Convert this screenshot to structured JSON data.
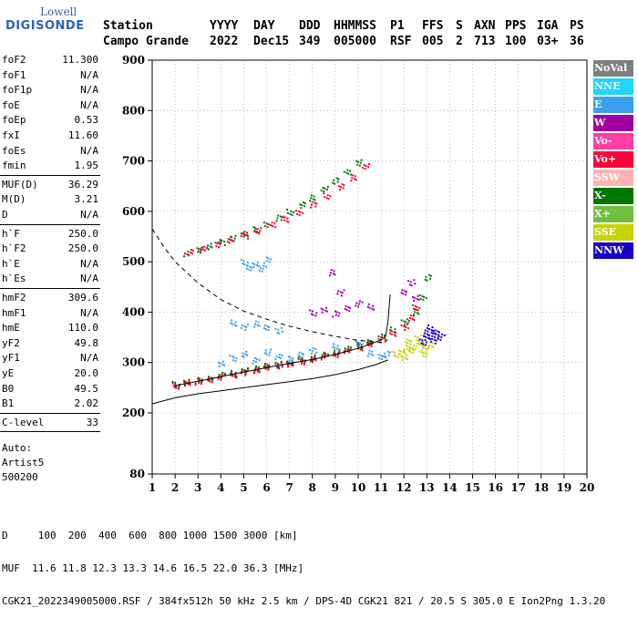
{
  "logo": {
    "line1": "Lowell",
    "line2": "DIGISONDE"
  },
  "header": {
    "row1": [
      "Station",
      "YYYY",
      "DAY",
      "DDD",
      "HHMMSS",
      "P1",
      "FFS",
      "S",
      "AXN",
      "PPS",
      "IGA",
      "PS"
    ],
    "row2": [
      "Campo Grande",
      "2022",
      "Dec15",
      "349",
      "005000",
      "RSF",
      "005",
      "2",
      "713",
      "100",
      "03+",
      "36"
    ]
  },
  "params": {
    "group1": [
      [
        "foF2",
        "11.300"
      ],
      [
        "foF1",
        "N/A"
      ],
      [
        "foF1p",
        "N/A"
      ],
      [
        "foE",
        "N/A"
      ],
      [
        "foEp",
        "0.53"
      ],
      [
        "fxI",
        "11.60"
      ],
      [
        "foEs",
        "N/A"
      ],
      [
        "fmin",
        "1.95"
      ]
    ],
    "group2": [
      [
        "MUF(D)",
        "36.29"
      ],
      [
        "M(D)",
        "3.21"
      ],
      [
        "D",
        "N/A"
      ]
    ],
    "group3": [
      [
        "h`F",
        "250.0"
      ],
      [
        "h`F2",
        "250.0"
      ],
      [
        "h`E",
        "N/A"
      ],
      [
        "h`Es",
        "N/A"
      ]
    ],
    "group4": [
      [
        "hmF2",
        "309.6"
      ],
      [
        "hmF1",
        "N/A"
      ],
      [
        "hmE",
        "110.0"
      ],
      [
        "yF2",
        "49.8"
      ],
      [
        "yF1",
        "N/A"
      ],
      [
        "yE",
        "20.0"
      ],
      [
        "B0",
        "49.5"
      ],
      [
        "B1",
        "2.02"
      ]
    ],
    "group5": [
      [
        "C-level",
        "33"
      ]
    ],
    "auto": [
      "Auto:",
      "Artist5",
      "500200"
    ]
  },
  "legend": [
    {
      "label": "NoVal",
      "color": "#7f7f7f"
    },
    {
      "label": "NNE",
      "color": "#1fd4ff"
    },
    {
      "label": "E",
      "color": "#3aa0f0"
    },
    {
      "label": "W",
      "color": "#a0009f"
    },
    {
      "label": "Vo-",
      "color": "#ff3fa4"
    },
    {
      "label": "Vo+",
      "color": "#ff0038"
    },
    {
      "label": "SSW",
      "color": "#ffb4b4"
    },
    {
      "label": "X-",
      "color": "#007800"
    },
    {
      "label": "X+",
      "color": "#70c040"
    },
    {
      "label": "SSE",
      "color": "#c8d200"
    },
    {
      "label": "NNW",
      "color": "#1400c8"
    }
  ],
  "bottom": {
    "line1": "D     100  200  400  600  800 1000 1500 3000 [km]",
    "line2": "MUF  11.6 11.8 12.3 13.3 14.6 16.5 22.0 36.3 [MHz]",
    "line3": "CGK21_2022349005000.RSF / 384fx512h 50 kHz 2.5 km / DPS-4D CGK21 821 / 20.5 S 305.0 E Ion2Png 1.3.20"
  },
  "chart_data": {
    "type": "scatter",
    "xlim": [
      1,
      20
    ],
    "ylim": [
      80,
      900
    ],
    "x_ticks": [
      1,
      2,
      3,
      4,
      5,
      6,
      7,
      8,
      9,
      10,
      11,
      12,
      13,
      14,
      15,
      16,
      17,
      18,
      19,
      20
    ],
    "y_ticks": [
      80,
      200,
      300,
      400,
      500,
      600,
      700,
      800,
      900
    ],
    "grid": "dotted",
    "series": [
      {
        "name": "X-",
        "points": [
          [
            2.0,
            258
          ],
          [
            2.5,
            262
          ],
          [
            3,
            266
          ],
          [
            3.5,
            270
          ],
          [
            4,
            276
          ],
          [
            4.5,
            280
          ],
          [
            5,
            285
          ],
          [
            5.5,
            289
          ],
          [
            6,
            294
          ],
          [
            6.5,
            298
          ],
          [
            7,
            302
          ],
          [
            7.5,
            306
          ],
          [
            8,
            311
          ],
          [
            8.5,
            316
          ],
          [
            9,
            322
          ],
          [
            9.5,
            328
          ],
          [
            10,
            335
          ],
          [
            10.5,
            343
          ],
          [
            11,
            352
          ],
          [
            11.5,
            366
          ],
          [
            12,
            382
          ],
          [
            12.5,
            402
          ],
          [
            12.8,
            430
          ],
          [
            13,
            470
          ],
          [
            2.5,
            518
          ],
          [
            3,
            525
          ],
          [
            3.5,
            532
          ],
          [
            4,
            540
          ],
          [
            4.5,
            548
          ],
          [
            5,
            556
          ],
          [
            5.5,
            565
          ],
          [
            6,
            576
          ],
          [
            6.5,
            588
          ],
          [
            7,
            600
          ],
          [
            7.5,
            614
          ],
          [
            8,
            628
          ],
          [
            8.5,
            645
          ],
          [
            9,
            662
          ],
          [
            9.5,
            680
          ],
          [
            10,
            698
          ]
        ]
      },
      {
        "name": "Vo+",
        "points": [
          [
            2.0,
            255
          ],
          [
            2.5,
            259
          ],
          [
            3,
            263
          ],
          [
            3.5,
            268
          ],
          [
            4,
            273
          ],
          [
            4.5,
            277
          ],
          [
            5,
            282
          ],
          [
            5.5,
            286
          ],
          [
            6,
            291
          ],
          [
            6.5,
            295
          ],
          [
            7,
            299
          ],
          [
            7.5,
            303
          ],
          [
            8,
            308
          ],
          [
            8.5,
            313
          ],
          [
            9,
            318
          ],
          [
            9.5,
            324
          ],
          [
            10,
            331
          ],
          [
            10.5,
            339
          ],
          [
            11,
            347
          ],
          [
            11.5,
            360
          ],
          [
            12,
            372
          ],
          [
            12.3,
            390
          ],
          [
            12.5,
            410
          ],
          [
            2.6,
            520
          ],
          [
            3.2,
            528
          ],
          [
            3.8,
            536
          ],
          [
            4.4,
            545
          ],
          [
            5,
            553
          ],
          [
            5.6,
            563
          ],
          [
            6.2,
            574
          ],
          [
            6.8,
            586
          ],
          [
            7.4,
            600
          ],
          [
            8,
            615
          ],
          [
            8.6,
            632
          ],
          [
            9.2,
            650
          ],
          [
            9.8,
            668
          ],
          [
            10.3,
            690
          ]
        ]
      },
      {
        "name": "SSE",
        "points": [
          [
            11.6,
            318
          ],
          [
            11.9,
            322
          ],
          [
            12.1,
            330
          ],
          [
            12.3,
            326
          ],
          [
            12.5,
            334
          ],
          [
            12.7,
            340
          ],
          [
            12.9,
            328
          ],
          [
            13.1,
            336
          ],
          [
            12.2,
            342
          ],
          [
            12.6,
            350
          ],
          [
            12.0,
            312
          ],
          [
            12.8,
            318
          ]
        ]
      },
      {
        "name": "NNW",
        "points": [
          [
            12.8,
            342
          ],
          [
            13.0,
            350
          ],
          [
            13.2,
            356
          ],
          [
            13.4,
            362
          ],
          [
            13.6,
            352
          ],
          [
            13.1,
            370
          ],
          [
            13.3,
            345
          ],
          [
            12.9,
            360
          ]
        ]
      },
      {
        "name": "E",
        "points": [
          [
            5,
            500
          ],
          [
            5.5,
            495
          ],
          [
            6,
            505
          ],
          [
            5.2,
            490
          ],
          [
            5.8,
            488
          ],
          [
            4.5,
            380
          ],
          [
            5,
            372
          ],
          [
            5.5,
            378
          ],
          [
            6,
            370
          ],
          [
            6.5,
            365
          ],
          [
            4,
            300
          ],
          [
            4.5,
            310
          ],
          [
            5,
            318
          ],
          [
            5.5,
            305
          ],
          [
            6,
            322
          ],
          [
            6.5,
            312
          ],
          [
            7,
            308
          ],
          [
            7.5,
            318
          ],
          [
            8,
            325
          ],
          [
            9,
            333
          ],
          [
            10,
            340
          ],
          [
            10.5,
            320
          ],
          [
            11,
            312
          ],
          [
            11.2,
            318
          ]
        ]
      },
      {
        "name": "W",
        "points": [
          [
            8,
            400
          ],
          [
            8.5,
            405
          ],
          [
            9,
            398
          ],
          [
            9.5,
            410
          ],
          [
            10,
            418
          ],
          [
            10.5,
            412
          ],
          [
            9.2,
            440
          ],
          [
            8.8,
            480
          ],
          [
            12,
            440
          ],
          [
            12.3,
            460
          ],
          [
            12.5,
            430
          ]
        ]
      }
    ],
    "curves": [
      {
        "name": "solid-upper",
        "style": "solid",
        "points": [
          [
            2.0,
            254
          ],
          [
            3,
            263
          ],
          [
            4,
            272
          ],
          [
            5,
            281
          ],
          [
            6,
            290
          ],
          [
            7,
            298
          ],
          [
            8,
            306
          ],
          [
            9,
            316
          ],
          [
            10,
            328
          ],
          [
            10.5,
            336
          ],
          [
            11,
            345
          ],
          [
            11.2,
            352
          ],
          [
            11.3,
            380
          ],
          [
            11.4,
            435
          ]
        ]
      },
      {
        "name": "solid-lower",
        "style": "solid",
        "points": [
          [
            1,
            218
          ],
          [
            2,
            230
          ],
          [
            3,
            238
          ],
          [
            4,
            244
          ],
          [
            5,
            250
          ],
          [
            6,
            256
          ],
          [
            7,
            262
          ],
          [
            8,
            268
          ],
          [
            9,
            276
          ],
          [
            10,
            286
          ],
          [
            10.8,
            296
          ],
          [
            11.3,
            305
          ]
        ]
      },
      {
        "name": "dashed",
        "style": "dashed",
        "points": [
          [
            1,
            565
          ],
          [
            1.5,
            530
          ],
          [
            2,
            500
          ],
          [
            3,
            458
          ],
          [
            4,
            425
          ],
          [
            5,
            402
          ],
          [
            6,
            386
          ],
          [
            7,
            372
          ],
          [
            8,
            361
          ],
          [
            9,
            352
          ],
          [
            10,
            344
          ],
          [
            11,
            340
          ],
          [
            11.3,
            345
          ]
        ]
      }
    ]
  }
}
